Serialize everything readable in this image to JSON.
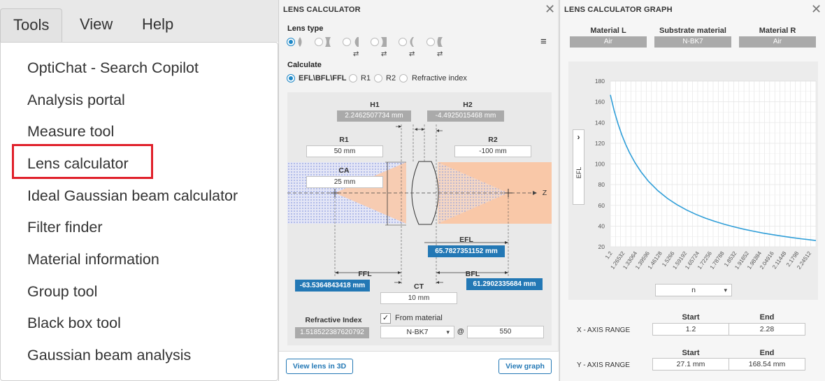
{
  "menubar": {
    "items": [
      "Tools",
      "View",
      "Help"
    ]
  },
  "tools_menu": {
    "items": [
      "OptiChat - Search Copilot",
      "Analysis portal",
      "Measure tool",
      "Lens calculator",
      "Ideal Gaussian beam calculator",
      "Filter finder",
      "Material information",
      "Group tool",
      "Black box tool",
      "Gaussian beam analysis"
    ],
    "highlighted": "Lens calculator",
    "highlight_color": "#e0202a"
  },
  "calculator": {
    "title": "LENS CALCULATOR",
    "close_glyph": "✕",
    "lens_type_label": "Lens type",
    "menu_glyph": "≡",
    "calculate_label": "Calculate",
    "calculate_options": [
      "EFL\\BFL\\FFL",
      "R1",
      "R2",
      "Refractive index"
    ],
    "selected_option": "EFL\\BFL\\FFL",
    "diagram": {
      "h1_label": "H1",
      "h1_value": "2.2462507734 mm",
      "h2_label": "H2",
      "h2_value": "-4.4925015468 mm",
      "r1_label": "R1",
      "r1_value": "50 mm",
      "r2_label": "R2",
      "r2_value": "-100 mm",
      "ca_label": "CA",
      "ca_value": "25 mm",
      "axis_label": "Z",
      "efl_label": "EFL",
      "efl_value": "65.7827351152 mm",
      "ffl_label": "FFL",
      "ffl_value": "-63.5364843418 mm",
      "bfl_label": "BFL",
      "bfl_value": "61.2902335684 mm",
      "ct_label": "CT",
      "ct_value": "10 mm",
      "ri_label": "Refractive Index",
      "ri_value": "1.518522387620792",
      "from_material_label": "From material",
      "material_value": "N-BK7",
      "at_glyph": "@",
      "wavelength_value": "550"
    },
    "footer": {
      "view_3d": "View lens in 3D",
      "view_graph": "View graph"
    },
    "colors": {
      "accent": "#2378b5",
      "beam_blue": "#b8c4ee",
      "beam_orange": "#f9c8a8"
    }
  },
  "graph": {
    "title": "LENS CALCULATOR GRAPH",
    "close_glyph": "✕",
    "material_l_label": "Material L",
    "material_l_value": "Air",
    "substrate_label": "Substrate material",
    "substrate_value": "N-BK7",
    "material_r_label": "Material R",
    "material_r_value": "Air",
    "toggle_glyph": "›",
    "x_select_value": "n",
    "ranges": {
      "start_head": "Start",
      "end_head": "End",
      "x_label": "X - AXIS RANGE",
      "x_start": "1.2",
      "x_end": "2.28",
      "y_label": "Y - AXIS RANGE",
      "y_start": "27.1 mm",
      "y_end": "168.54 mm"
    }
  },
  "chart_data": {
    "type": "line",
    "title": "",
    "xlabel": "n",
    "ylabel": "EFL",
    "xlim": [
      1.2,
      2.28
    ],
    "ylim": [
      20,
      180
    ],
    "yticks": [
      20,
      40,
      60,
      80,
      100,
      120,
      140,
      160,
      180
    ],
    "xticks": [
      "1.2",
      "1.26532",
      "1.33064",
      "1.39596",
      "1.46128",
      "1.5266",
      "1.59192",
      "1.65724",
      "1.72256",
      "1.78788",
      "1.8532",
      "1.91852",
      "1.98384",
      "2.04916",
      "2.11448",
      "2.1798",
      "2.24512"
    ],
    "grid": true,
    "line_color": "#2f9ed8",
    "series": [
      {
        "name": "",
        "x": [
          1.2,
          1.22,
          1.24,
          1.26,
          1.28,
          1.3,
          1.33,
          1.36,
          1.4,
          1.45,
          1.5,
          1.55,
          1.6,
          1.65,
          1.7,
          1.75,
          1.8,
          1.85,
          1.9,
          1.95,
          2.0,
          2.05,
          2.1,
          2.15,
          2.2,
          2.25,
          2.28
        ],
        "y": [
          166.67,
          151.52,
          138.89,
          128.21,
          119.05,
          111.11,
          101.01,
          92.59,
          83.33,
          74.07,
          66.67,
          60.61,
          55.56,
          51.28,
          47.62,
          44.44,
          41.67,
          39.22,
          37.04,
          35.09,
          33.33,
          31.75,
          30.3,
          28.99,
          27.78,
          26.67,
          26.0
        ]
      }
    ]
  }
}
